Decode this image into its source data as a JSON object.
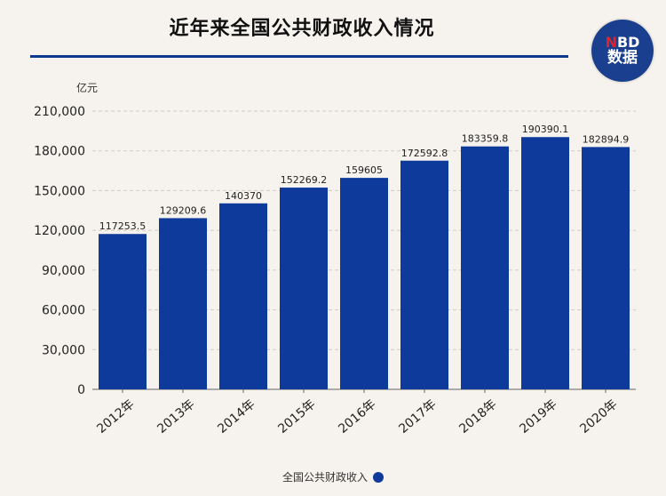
{
  "header": {
    "title": "近年来全国公共财政收入情况",
    "logo_text_top": "NBD",
    "logo_text_bottom": "数据"
  },
  "colors": {
    "bar": "#0d3a9b",
    "title_rule": "#0d3a8c",
    "logo_bg": "#1b3f8f",
    "logo_accent": "#e0242b"
  },
  "chart_data": {
    "type": "bar",
    "title": "近年来全国公共财政收入情况",
    "ylabel": "亿元",
    "xlabel": "",
    "categories": [
      "2012年",
      "2013年",
      "2014年",
      "2015年",
      "2016年",
      "2017年",
      "2018年",
      "2019年",
      "2020年"
    ],
    "series": [
      {
        "name": "全国公共财政收入",
        "values": [
          117253.5,
          129209.6,
          140370,
          152269.2,
          159605,
          172592.8,
          183359.8,
          190390.1,
          182894.9
        ],
        "labels": [
          "117253.5",
          "129209.6",
          "140370",
          "152269.2",
          "159605",
          "172592.8",
          "183359.8",
          "190390.1",
          "182894.9"
        ]
      }
    ],
    "ylim": [
      0,
      210000
    ],
    "yticks": [
      0,
      30000,
      60000,
      90000,
      120000,
      150000,
      180000,
      210000
    ],
    "ytick_labels": [
      "0",
      "30,000",
      "60,000",
      "90,000",
      "120,000",
      "150,000",
      "180,000",
      "210,000"
    ],
    "grid": true,
    "legend_position": "bottom-center"
  }
}
